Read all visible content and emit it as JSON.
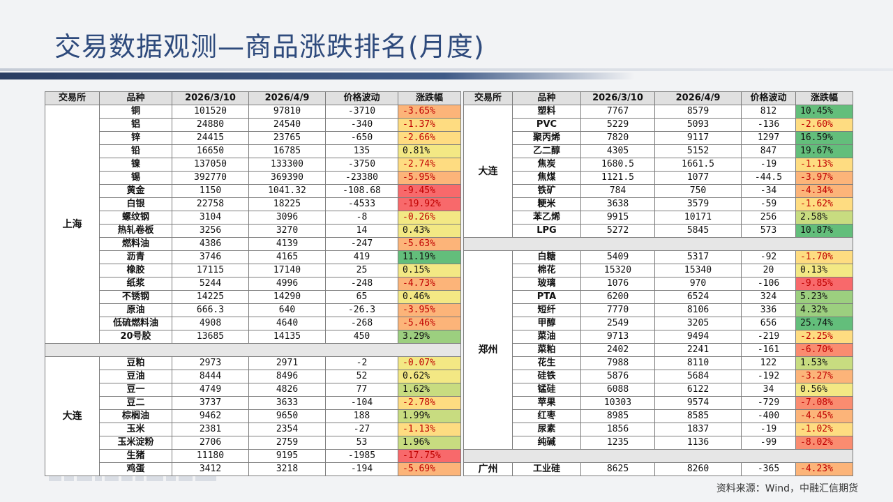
{
  "title": "交易数据观测—商品涨跌排名(月度)",
  "source": "资料来源：Wind，中融汇信期货",
  "headers": [
    "交易所",
    "品种",
    "2026/3/10",
    "2026/4/9",
    "价格波动",
    "涨跌幅"
  ],
  "colors": {
    "header_bg": "#e0e0e0",
    "title": "#2e4a7c",
    "change_palette": [
      "#f8696b",
      "#fa8c70",
      "#fcb479",
      "#fedc81",
      "#f3e884",
      "#c8dc80",
      "#9ccf7f",
      "#63be7b"
    ]
  },
  "left_groups": [
    {
      "exchange": "上海",
      "rows": [
        {
          "product": "铜",
          "v1": "101520",
          "v2": "97810",
          "diff": "-3710",
          "pct": "-3.65%",
          "p": -3.65
        },
        {
          "product": "铝",
          "v1": "24880",
          "v2": "24540",
          "diff": "-340",
          "pct": "-1.37%",
          "p": -1.37
        },
        {
          "product": "锌",
          "v1": "24415",
          "v2": "23765",
          "diff": "-650",
          "pct": "-2.66%",
          "p": -2.66
        },
        {
          "product": "铅",
          "v1": "16650",
          "v2": "16785",
          "diff": "135",
          "pct": "0.81%",
          "p": 0.81
        },
        {
          "product": "镍",
          "v1": "137050",
          "v2": "133300",
          "diff": "-3750",
          "pct": "-2.74%",
          "p": -2.74
        },
        {
          "product": "锡",
          "v1": "392770",
          "v2": "369390",
          "diff": "-23380",
          "pct": "-5.95%",
          "p": -5.95
        },
        {
          "product": "黄金",
          "v1": "1150",
          "v2": "1041.32",
          "diff": "-108.68",
          "pct": "-9.45%",
          "p": -9.45
        },
        {
          "product": "白银",
          "v1": "22758",
          "v2": "18225",
          "diff": "-4533",
          "pct": "-19.92%",
          "p": -19.92
        },
        {
          "product": "螺纹钢",
          "v1": "3104",
          "v2": "3096",
          "diff": "-8",
          "pct": "-0.26%",
          "p": -0.26
        },
        {
          "product": "热轧卷板",
          "v1": "3256",
          "v2": "3270",
          "diff": "14",
          "pct": "0.43%",
          "p": 0.43
        },
        {
          "product": "燃料油",
          "v1": "4386",
          "v2": "4139",
          "diff": "-247",
          "pct": "-5.63%",
          "p": -5.63
        },
        {
          "product": "沥青",
          "v1": "3746",
          "v2": "4165",
          "diff": "419",
          "pct": "11.19%",
          "p": 11.19
        },
        {
          "product": "橡胶",
          "v1": "17115",
          "v2": "17140",
          "diff": "25",
          "pct": "0.15%",
          "p": 0.15
        },
        {
          "product": "纸浆",
          "v1": "5244",
          "v2": "4996",
          "diff": "-248",
          "pct": "-4.73%",
          "p": -4.73
        },
        {
          "product": "不锈钢",
          "v1": "14225",
          "v2": "14290",
          "diff": "65",
          "pct": "0.46%",
          "p": 0.46
        },
        {
          "product": "原油",
          "v1": "666.3",
          "v2": "640",
          "diff": "-26.3",
          "pct": "-3.95%",
          "p": -3.95
        },
        {
          "product": "低硫燃料油",
          "v1": "4908",
          "v2": "4640",
          "diff": "-268",
          "pct": "-5.46%",
          "p": -5.46
        },
        {
          "product": "20号胶",
          "v1": "13685",
          "v2": "14135",
          "diff": "450",
          "pct": "3.29%",
          "p": 3.29
        }
      ]
    },
    {
      "exchange": "大连",
      "rows": [
        {
          "product": "豆粕",
          "v1": "2973",
          "v2": "2971",
          "diff": "-2",
          "pct": "-0.07%",
          "p": -0.07
        },
        {
          "product": "豆油",
          "v1": "8444",
          "v2": "8496",
          "diff": "52",
          "pct": "0.62%",
          "p": 0.62
        },
        {
          "product": "豆一",
          "v1": "4749",
          "v2": "4826",
          "diff": "77",
          "pct": "1.62%",
          "p": 1.62
        },
        {
          "product": "豆二",
          "v1": "3737",
          "v2": "3633",
          "diff": "-104",
          "pct": "-2.78%",
          "p": -2.78
        },
        {
          "product": "棕榈油",
          "v1": "9462",
          "v2": "9650",
          "diff": "188",
          "pct": "1.99%",
          "p": 1.99
        },
        {
          "product": "玉米",
          "v1": "2381",
          "v2": "2354",
          "diff": "-27",
          "pct": "-1.13%",
          "p": -1.13
        },
        {
          "product": "玉米淀粉",
          "v1": "2706",
          "v2": "2759",
          "diff": "53",
          "pct": "1.96%",
          "p": 1.96
        },
        {
          "product": "生猪",
          "v1": "11180",
          "v2": "9195",
          "diff": "-1985",
          "pct": "-17.75%",
          "p": -17.75
        },
        {
          "product": "鸡蛋",
          "v1": "3412",
          "v2": "3218",
          "diff": "-194",
          "pct": "-5.69%",
          "p": -5.69
        }
      ]
    }
  ],
  "right_groups": [
    {
      "exchange": "大连",
      "rows": [
        {
          "product": "塑料",
          "v1": "7767",
          "v2": "8579",
          "diff": "812",
          "pct": "10.45%",
          "p": 10.45
        },
        {
          "product": "PVC",
          "v1": "5229",
          "v2": "5093",
          "diff": "-136",
          "pct": "-2.60%",
          "p": -2.6
        },
        {
          "product": "聚丙烯",
          "v1": "7820",
          "v2": "9117",
          "diff": "1297",
          "pct": "16.59%",
          "p": 16.59
        },
        {
          "product": "乙二醇",
          "v1": "4305",
          "v2": "5152",
          "diff": "847",
          "pct": "19.67%",
          "p": 19.67
        },
        {
          "product": "焦炭",
          "v1": "1680.5",
          "v2": "1661.5",
          "diff": "-19",
          "pct": "-1.13%",
          "p": -1.13
        },
        {
          "product": "焦煤",
          "v1": "1121.5",
          "v2": "1077",
          "diff": "-44.5",
          "pct": "-3.97%",
          "p": -3.97
        },
        {
          "product": "铁矿",
          "v1": "784",
          "v2": "750",
          "diff": "-34",
          "pct": "-4.34%",
          "p": -4.34
        },
        {
          "product": "粳米",
          "v1": "3638",
          "v2": "3579",
          "diff": "-59",
          "pct": "-1.62%",
          "p": -1.62
        },
        {
          "product": "苯乙烯",
          "v1": "9915",
          "v2": "10171",
          "diff": "256",
          "pct": "2.58%",
          "p": 2.58
        },
        {
          "product": "LPG",
          "v1": "5272",
          "v2": "5845",
          "diff": "573",
          "pct": "10.87%",
          "p": 10.87
        }
      ]
    },
    {
      "exchange": "郑州",
      "rows": [
        {
          "product": "白糖",
          "v1": "5409",
          "v2": "5317",
          "diff": "-92",
          "pct": "-1.70%",
          "p": -1.7
        },
        {
          "product": "棉花",
          "v1": "15320",
          "v2": "15340",
          "diff": "20",
          "pct": "0.13%",
          "p": 0.13
        },
        {
          "product": "玻璃",
          "v1": "1076",
          "v2": "970",
          "diff": "-106",
          "pct": "-9.85%",
          "p": -9.85
        },
        {
          "product": "PTA",
          "v1": "6200",
          "v2": "6524",
          "diff": "324",
          "pct": "5.23%",
          "p": 5.23
        },
        {
          "product": "短纤",
          "v1": "7770",
          "v2": "8106",
          "diff": "336",
          "pct": "4.32%",
          "p": 4.32
        },
        {
          "product": "甲醇",
          "v1": "2549",
          "v2": "3205",
          "diff": "656",
          "pct": "25.74%",
          "p": 25.74
        },
        {
          "product": "菜油",
          "v1": "9713",
          "v2": "9494",
          "diff": "-219",
          "pct": "-2.25%",
          "p": -2.25
        },
        {
          "product": "菜粕",
          "v1": "2402",
          "v2": "2241",
          "diff": "-161",
          "pct": "-6.70%",
          "p": -6.7
        },
        {
          "product": "花生",
          "v1": "7988",
          "v2": "8110",
          "diff": "122",
          "pct": "1.53%",
          "p": 1.53
        },
        {
          "product": "硅铁",
          "v1": "5876",
          "v2": "5684",
          "diff": "-192",
          "pct": "-3.27%",
          "p": -3.27
        },
        {
          "product": "锰硅",
          "v1": "6088",
          "v2": "6122",
          "diff": "34",
          "pct": "0.56%",
          "p": 0.56
        },
        {
          "product": "苹果",
          "v1": "10303",
          "v2": "9574",
          "diff": "-729",
          "pct": "-7.08%",
          "p": -7.08
        },
        {
          "product": "红枣",
          "v1": "8985",
          "v2": "8585",
          "diff": "-400",
          "pct": "-4.45%",
          "p": -4.45
        },
        {
          "product": "尿素",
          "v1": "1856",
          "v2": "1837",
          "diff": "-19",
          "pct": "-1.02%",
          "p": -1.02
        },
        {
          "product": "纯碱",
          "v1": "1235",
          "v2": "1136",
          "diff": "-99",
          "pct": "-8.02%",
          "p": -8.02
        }
      ]
    },
    {
      "exchange": "广州",
      "rows": [
        {
          "product": "工业硅",
          "v1": "8625",
          "v2": "8260",
          "diff": "-365",
          "pct": "-4.23%",
          "p": -4.23
        }
      ]
    }
  ]
}
